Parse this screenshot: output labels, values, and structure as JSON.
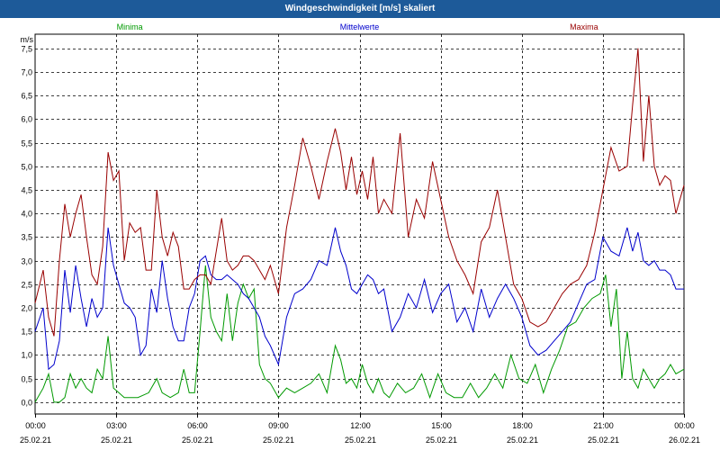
{
  "window": {
    "title": "Windgeschwindigkeit [m/s] skaliert"
  },
  "chart_data": {
    "type": "line",
    "title": "Windgeschwindigkeit [m/s] skaliert",
    "ylabel": "m/s",
    "xlabel": "",
    "ylim": [
      -0.25,
      7.8
    ],
    "xlim": [
      0,
      24
    ],
    "grid": true,
    "y_ticks": [
      0.0,
      0.5,
      1.0,
      1.5,
      2.0,
      2.5,
      3.0,
      3.5,
      4.0,
      4.5,
      5.0,
      5.5,
      6.0,
      6.5,
      7.0,
      7.5
    ],
    "y_tick_labels": [
      "0,0",
      "0,5",
      "1,0",
      "1,5",
      "2,0",
      "2,5",
      "3,0",
      "3,5",
      "4,0",
      "4,5",
      "5,0",
      "5,5",
      "6,0",
      "6,5",
      "7,0",
      "7,5"
    ],
    "x_ticks": [
      {
        "hour": 0,
        "time": "00:00",
        "date": "25.02.21"
      },
      {
        "hour": 3,
        "time": "03:00",
        "date": "25.02.21"
      },
      {
        "hour": 6,
        "time": "06:00",
        "date": "25.02.21"
      },
      {
        "hour": 9,
        "time": "09:00",
        "date": "25.02.21"
      },
      {
        "hour": 12,
        "time": "12:00",
        "date": "25.02.21"
      },
      {
        "hour": 15,
        "time": "15:00",
        "date": "25.02.21"
      },
      {
        "hour": 18,
        "time": "18:00",
        "date": "25.02.21"
      },
      {
        "hour": 21,
        "time": "21:00",
        "date": "25.02.21"
      },
      {
        "hour": 24,
        "time": "00:00",
        "date": "26.02.21"
      }
    ],
    "series": [
      {
        "name": "Minima",
        "color": "#009900",
        "legend_hour": 3.5,
        "x": [
          0,
          0.3,
          0.5,
          0.7,
          0.9,
          1.1,
          1.3,
          1.5,
          1.7,
          1.9,
          2.1,
          2.3,
          2.5,
          2.7,
          2.9,
          3.1,
          3.3,
          3.5,
          3.8,
          4.2,
          4.5,
          4.7,
          5.0,
          5.3,
          5.5,
          5.7,
          5.9,
          6.1,
          6.3,
          6.5,
          6.7,
          6.9,
          7.1,
          7.3,
          7.5,
          7.7,
          7.9,
          8.1,
          8.3,
          8.5,
          8.7,
          9.0,
          9.3,
          9.6,
          9.9,
          10.2,
          10.5,
          10.8,
          11.1,
          11.3,
          11.5,
          11.7,
          11.9,
          12.1,
          12.3,
          12.5,
          12.7,
          12.9,
          13.1,
          13.4,
          13.7,
          14.0,
          14.3,
          14.6,
          14.9,
          15.2,
          15.5,
          15.8,
          16.1,
          16.4,
          16.7,
          17.0,
          17.3,
          17.6,
          17.9,
          18.2,
          18.5,
          18.8,
          19.1,
          19.4,
          19.7,
          20.0,
          20.3,
          20.6,
          20.9,
          21.1,
          21.3,
          21.5,
          21.7,
          21.9,
          22.1,
          22.3,
          22.5,
          22.7,
          22.9,
          23.1,
          23.3,
          23.5,
          23.7,
          24.0
        ],
        "values": [
          0.0,
          0.3,
          0.6,
          0.0,
          0.0,
          0.1,
          0.6,
          0.3,
          0.5,
          0.3,
          0.2,
          0.7,
          0.5,
          1.4,
          0.3,
          0.2,
          0.1,
          0.1,
          0.1,
          0.2,
          0.5,
          0.2,
          0.1,
          0.2,
          0.7,
          0.2,
          0.2,
          1.5,
          2.9,
          1.8,
          1.5,
          1.3,
          2.3,
          1.3,
          2.1,
          2.5,
          2.2,
          2.4,
          0.8,
          0.5,
          0.4,
          0.1,
          0.3,
          0.2,
          0.3,
          0.4,
          0.6,
          0.2,
          1.2,
          0.9,
          0.4,
          0.5,
          0.3,
          0.8,
          0.4,
          0.2,
          0.5,
          0.2,
          0.1,
          0.4,
          0.2,
          0.3,
          0.6,
          0.1,
          0.6,
          0.2,
          0.1,
          0.1,
          0.4,
          0.1,
          0.3,
          0.6,
          0.3,
          1.0,
          0.5,
          0.4,
          0.8,
          0.2,
          0.7,
          1.1,
          1.6,
          1.7,
          2.0,
          2.2,
          2.3,
          2.7,
          1.6,
          2.4,
          0.5,
          1.5,
          0.5,
          0.3,
          0.7,
          0.5,
          0.3,
          0.5,
          0.6,
          0.8,
          0.6,
          0.7
        ]
      },
      {
        "name": "Mittelwerte",
        "color": "#0000cc",
        "legend_hour": 12,
        "x": [
          0,
          0.3,
          0.5,
          0.7,
          0.9,
          1.1,
          1.3,
          1.5,
          1.7,
          1.9,
          2.1,
          2.3,
          2.5,
          2.7,
          2.9,
          3.1,
          3.3,
          3.5,
          3.7,
          3.9,
          4.1,
          4.3,
          4.5,
          4.7,
          4.9,
          5.1,
          5.3,
          5.5,
          5.7,
          5.9,
          6.1,
          6.3,
          6.5,
          6.7,
          6.9,
          7.1,
          7.3,
          7.5,
          7.7,
          7.9,
          8.1,
          8.3,
          8.5,
          8.7,
          9.0,
          9.3,
          9.6,
          9.9,
          10.2,
          10.5,
          10.8,
          11.1,
          11.3,
          11.5,
          11.7,
          11.9,
          12.1,
          12.3,
          12.5,
          12.7,
          12.9,
          13.2,
          13.5,
          13.8,
          14.1,
          14.4,
          14.7,
          15.0,
          15.3,
          15.6,
          15.9,
          16.2,
          16.5,
          16.8,
          17.1,
          17.4,
          17.7,
          18.0,
          18.3,
          18.6,
          18.9,
          19.2,
          19.5,
          19.8,
          20.1,
          20.4,
          20.7,
          21.0,
          21.3,
          21.6,
          21.9,
          22.1,
          22.3,
          22.5,
          22.7,
          22.9,
          23.1,
          23.3,
          23.5,
          23.7,
          24.0
        ],
        "values": [
          1.5,
          2.0,
          0.7,
          0.8,
          1.3,
          2.8,
          1.9,
          2.9,
          2.2,
          1.6,
          2.2,
          1.8,
          2.0,
          3.7,
          2.9,
          2.5,
          2.1,
          2.0,
          1.8,
          1.0,
          1.2,
          2.4,
          1.9,
          3.0,
          2.2,
          1.6,
          1.3,
          1.3,
          2.0,
          2.3,
          3.0,
          3.1,
          2.7,
          2.6,
          2.6,
          2.7,
          2.6,
          2.5,
          2.3,
          2.2,
          2.0,
          1.8,
          1.4,
          1.2,
          0.8,
          1.8,
          2.3,
          2.4,
          2.6,
          3.0,
          2.9,
          3.7,
          3.2,
          2.9,
          2.4,
          2.3,
          2.5,
          2.7,
          2.6,
          2.3,
          2.4,
          1.5,
          1.8,
          2.3,
          2.0,
          2.6,
          1.9,
          2.3,
          2.5,
          1.7,
          2.0,
          1.5,
          2.4,
          1.8,
          2.2,
          2.5,
          2.2,
          1.8,
          1.2,
          1.0,
          1.1,
          1.3,
          1.5,
          1.7,
          2.1,
          2.5,
          2.6,
          3.5,
          3.2,
          3.1,
          3.7,
          3.2,
          3.6,
          3.0,
          2.9,
          3.0,
          2.8,
          2.8,
          2.7,
          2.4,
          2.4
        ]
      },
      {
        "name": "Maxima",
        "color": "#990000",
        "legend_hour": 20.3,
        "x": [
          0,
          0.3,
          0.5,
          0.7,
          0.9,
          1.1,
          1.3,
          1.5,
          1.7,
          1.9,
          2.1,
          2.3,
          2.5,
          2.7,
          2.9,
          3.1,
          3.3,
          3.5,
          3.7,
          3.9,
          4.1,
          4.3,
          4.5,
          4.7,
          4.9,
          5.1,
          5.3,
          5.5,
          5.7,
          5.9,
          6.1,
          6.3,
          6.5,
          6.7,
          6.9,
          7.1,
          7.3,
          7.5,
          7.7,
          7.9,
          8.1,
          8.3,
          8.5,
          8.7,
          9.0,
          9.3,
          9.6,
          9.9,
          10.2,
          10.5,
          10.8,
          11.1,
          11.3,
          11.5,
          11.7,
          11.9,
          12.1,
          12.3,
          12.5,
          12.7,
          12.9,
          13.2,
          13.5,
          13.8,
          14.1,
          14.4,
          14.7,
          15.0,
          15.3,
          15.6,
          15.9,
          16.2,
          16.5,
          16.8,
          17.1,
          17.4,
          17.7,
          18.0,
          18.3,
          18.6,
          18.9,
          19.2,
          19.5,
          19.8,
          20.1,
          20.4,
          20.7,
          21.0,
          21.3,
          21.6,
          21.9,
          22.1,
          22.3,
          22.5,
          22.7,
          22.9,
          23.1,
          23.3,
          23.5,
          23.7,
          24.0
        ],
        "values": [
          2.1,
          2.8,
          1.8,
          1.4,
          3.0,
          4.2,
          3.5,
          4.0,
          4.4,
          3.5,
          2.7,
          2.5,
          3.3,
          5.3,
          4.7,
          4.9,
          3.0,
          3.8,
          3.6,
          3.7,
          2.8,
          2.8,
          4.5,
          3.5,
          3.1,
          3.6,
          3.3,
          2.4,
          2.4,
          2.6,
          2.7,
          2.7,
          2.5,
          3.2,
          3.9,
          3.0,
          2.8,
          2.9,
          3.1,
          3.1,
          3.0,
          2.8,
          2.6,
          2.9,
          2.3,
          3.7,
          4.6,
          5.6,
          5.0,
          4.3,
          5.1,
          5.8,
          5.3,
          4.5,
          5.2,
          4.4,
          4.9,
          4.3,
          5.2,
          4.0,
          4.3,
          4.0,
          5.7,
          3.5,
          4.3,
          3.9,
          5.1,
          4.3,
          3.5,
          3.0,
          2.7,
          2.3,
          3.4,
          3.7,
          4.5,
          3.5,
          2.5,
          2.2,
          1.7,
          1.6,
          1.7,
          2.0,
          2.3,
          2.5,
          2.6,
          2.9,
          3.6,
          4.5,
          5.4,
          4.9,
          5.0,
          6.3,
          7.5,
          5.1,
          6.5,
          5.0,
          4.6,
          4.8,
          4.7,
          4.0,
          4.6
        ]
      }
    ]
  }
}
